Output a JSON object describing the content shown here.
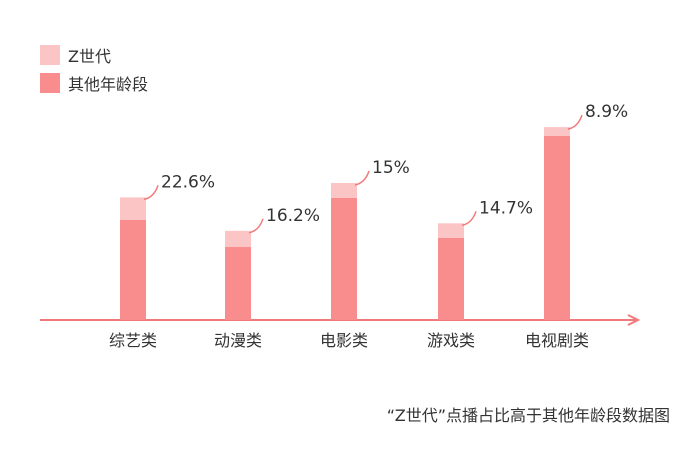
{
  "chart_data": {
    "type": "bar",
    "stacked": true,
    "categories": [
      "综艺类",
      "动漫类",
      "电影类",
      "游戏类",
      "电视剧类"
    ],
    "series": [
      {
        "name": "其他年龄段",
        "values": [
          100,
          73,
          122,
          82,
          184
        ]
      },
      {
        "name": "Z世代",
        "values": [
          22.6,
          16.2,
          15,
          14.7,
          8.9
        ]
      }
    ],
    "annotations": [
      "22.6%",
      "16.2%",
      "15%",
      "14.7%",
      "8.9%"
    ],
    "ylim": [
      0,
      220
    ],
    "grid": false,
    "legend_position": "top-left",
    "xlabel": "",
    "ylabel": "",
    "colors": {
      "z_gen": "#FCC5C5",
      "others": "#F98D8D",
      "axis": "#F07A7A",
      "leader": "#F07A7A"
    }
  },
  "caption": "“Z世代”点播占比高于其他年龄段数据图"
}
